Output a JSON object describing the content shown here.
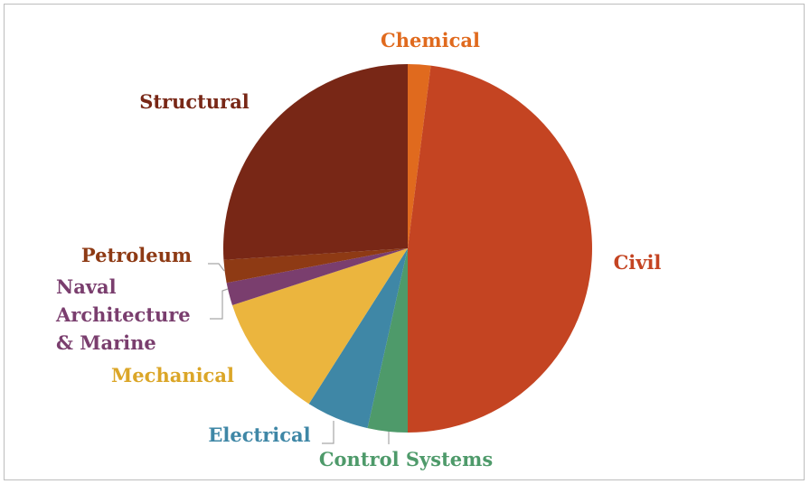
{
  "chart_data": {
    "type": "pie",
    "title": "",
    "legend": "none",
    "slices": [
      {
        "label": "Chemical",
        "value": 2,
        "color": "#E06A1E"
      },
      {
        "label": "Civil",
        "value": 48,
        "color": "#C44422"
      },
      {
        "label": "Control Systems",
        "value": 3.5,
        "color": "#4E9A6A"
      },
      {
        "label": "Electrical",
        "value": 5.5,
        "color": "#3F87A6"
      },
      {
        "label": "Mechanical",
        "value": 11,
        "color": "#EBB53E"
      },
      {
        "label": "Naval Architecture & Marine",
        "value": 2,
        "color": "#7A3E6E"
      },
      {
        "label": "Petroleum",
        "value": 2,
        "color": "#8E3A14"
      },
      {
        "label": "Structural",
        "value": 26,
        "color": "#782716"
      }
    ],
    "data_labels": [
      {
        "lines": [
          "Chemical"
        ],
        "color": "#E06A1E"
      },
      {
        "lines": [
          "Civil"
        ],
        "color": "#C44422"
      },
      {
        "lines": [
          "Control Systems"
        ],
        "color": "#4E9A6A"
      },
      {
        "lines": [
          "Electrical"
        ],
        "color": "#3F87A6"
      },
      {
        "lines": [
          "Mechanical"
        ],
        "color": "#DBA628"
      },
      {
        "lines": [
          "Naval",
          "Architecture",
          "& Marine"
        ],
        "color": "#7A3E6E"
      },
      {
        "lines": [
          "Petroleum"
        ],
        "color": "#8E3A14"
      },
      {
        "lines": [
          "Structural"
        ],
        "color": "#782716"
      }
    ]
  }
}
